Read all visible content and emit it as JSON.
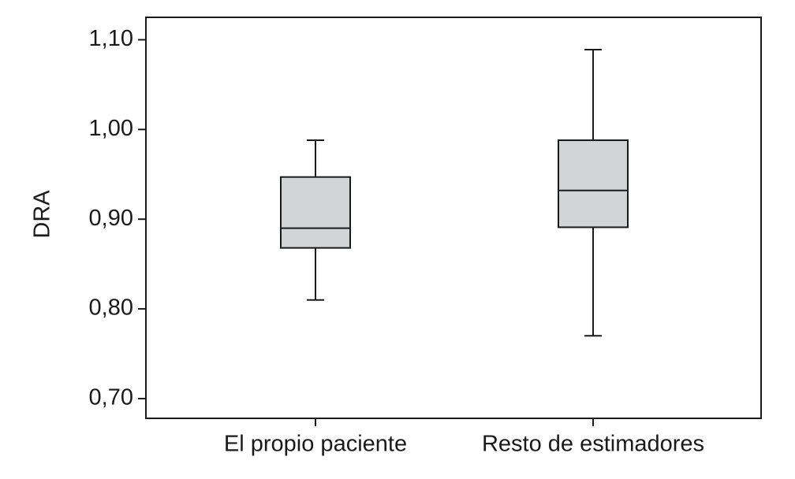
{
  "chart_data": {
    "type": "box",
    "y_label": "DRA",
    "categories": [
      "El propio paciente",
      "Resto de estimadores"
    ],
    "boxes": [
      {
        "min": 0.81,
        "q1": 0.868,
        "median": 0.89,
        "q3": 0.947,
        "max": 0.988
      },
      {
        "min": 0.77,
        "q1": 0.891,
        "median": 0.932,
        "q3": 0.988,
        "max": 1.089
      }
    ],
    "color": "#d3d4d5",
    "ylim": [
      0.678,
      1.125
    ],
    "yticks": [
      {
        "value": 0.7,
        "label": "0,70"
      },
      {
        "value": 0.8,
        "label": "0,80"
      },
      {
        "value": 0.9,
        "label": "0,90"
      },
      {
        "value": 1.0,
        "label": "1,00"
      },
      {
        "value": 1.1,
        "label": "1,10"
      }
    ]
  }
}
